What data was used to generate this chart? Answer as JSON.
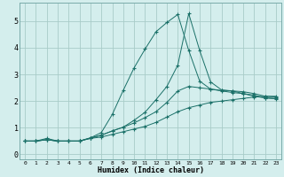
{
  "xlabel": "Humidex (Indice chaleur)",
  "background_color": "#d4eeed",
  "grid_color": "#a8ccc8",
  "line_color": "#1a7068",
  "x_ticks": [
    0,
    1,
    2,
    3,
    4,
    5,
    6,
    7,
    8,
    9,
    10,
    11,
    12,
    13,
    14,
    15,
    16,
    17,
    18,
    19,
    20,
    21,
    22,
    23
  ],
  "y_ticks": [
    0,
    1,
    2,
    3,
    4,
    5
  ],
  "xlim": [
    -0.5,
    23.5
  ],
  "ylim": [
    -0.2,
    5.7
  ],
  "series1_y": [
    0.5,
    0.5,
    0.6,
    0.5,
    0.5,
    0.5,
    0.6,
    0.65,
    0.75,
    0.85,
    0.95,
    1.05,
    1.2,
    1.4,
    1.6,
    1.75,
    1.85,
    1.95,
    2.0,
    2.05,
    2.1,
    2.15,
    2.18,
    2.18
  ],
  "series2_y": [
    0.5,
    0.5,
    0.55,
    0.5,
    0.5,
    0.5,
    0.6,
    0.72,
    0.88,
    1.02,
    1.18,
    1.38,
    1.6,
    1.95,
    2.38,
    2.55,
    2.5,
    2.45,
    2.4,
    2.38,
    2.35,
    2.28,
    2.18,
    2.15
  ],
  "series3_y": [
    0.5,
    0.5,
    0.55,
    0.5,
    0.5,
    0.5,
    0.62,
    0.82,
    1.5,
    2.4,
    3.25,
    3.95,
    4.6,
    4.95,
    5.25,
    3.9,
    2.75,
    2.45,
    2.38,
    2.32,
    2.28,
    2.22,
    2.12,
    2.08
  ],
  "series4_y": [
    0.5,
    0.5,
    0.55,
    0.5,
    0.5,
    0.5,
    0.62,
    0.72,
    0.88,
    1.02,
    1.28,
    1.58,
    2.05,
    2.55,
    3.35,
    5.28,
    3.9,
    2.72,
    2.42,
    2.38,
    2.28,
    2.18,
    2.12,
    2.1
  ]
}
